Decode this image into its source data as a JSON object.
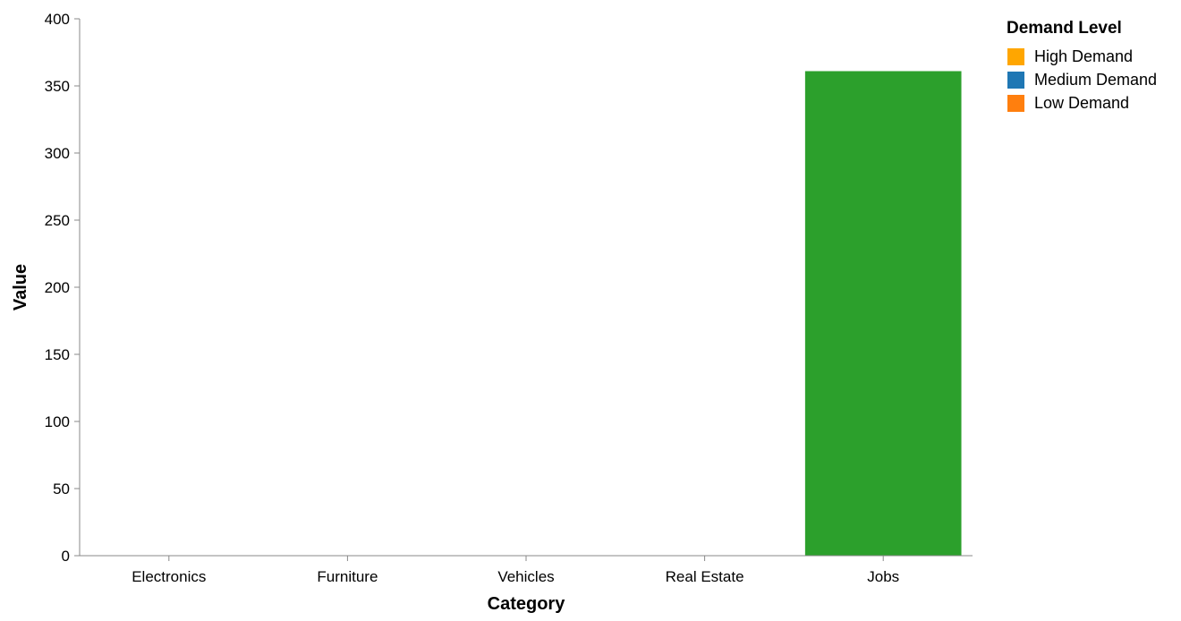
{
  "chart_data": {
    "type": "bar",
    "xlabel": "Category",
    "ylabel": "Value",
    "categories": [
      "Electronics",
      "Furniture",
      "Vehicles",
      "Real Estate",
      "Jobs"
    ],
    "values": [
      0,
      0,
      0,
      0,
      361
    ],
    "bar_color": "#2ca02c",
    "ylim": [
      0,
      400
    ],
    "yticks": [
      0,
      50,
      100,
      150,
      200,
      250,
      300,
      350,
      400
    ],
    "grid": false,
    "legend": {
      "title": "Demand Level",
      "placement": "top-right",
      "items": [
        {
          "label": "High Demand",
          "color": "#ffa600"
        },
        {
          "label": "Medium Demand",
          "color": "#1f77b4"
        },
        {
          "label": "Low Demand",
          "color": "#ff7f0e"
        }
      ]
    }
  }
}
